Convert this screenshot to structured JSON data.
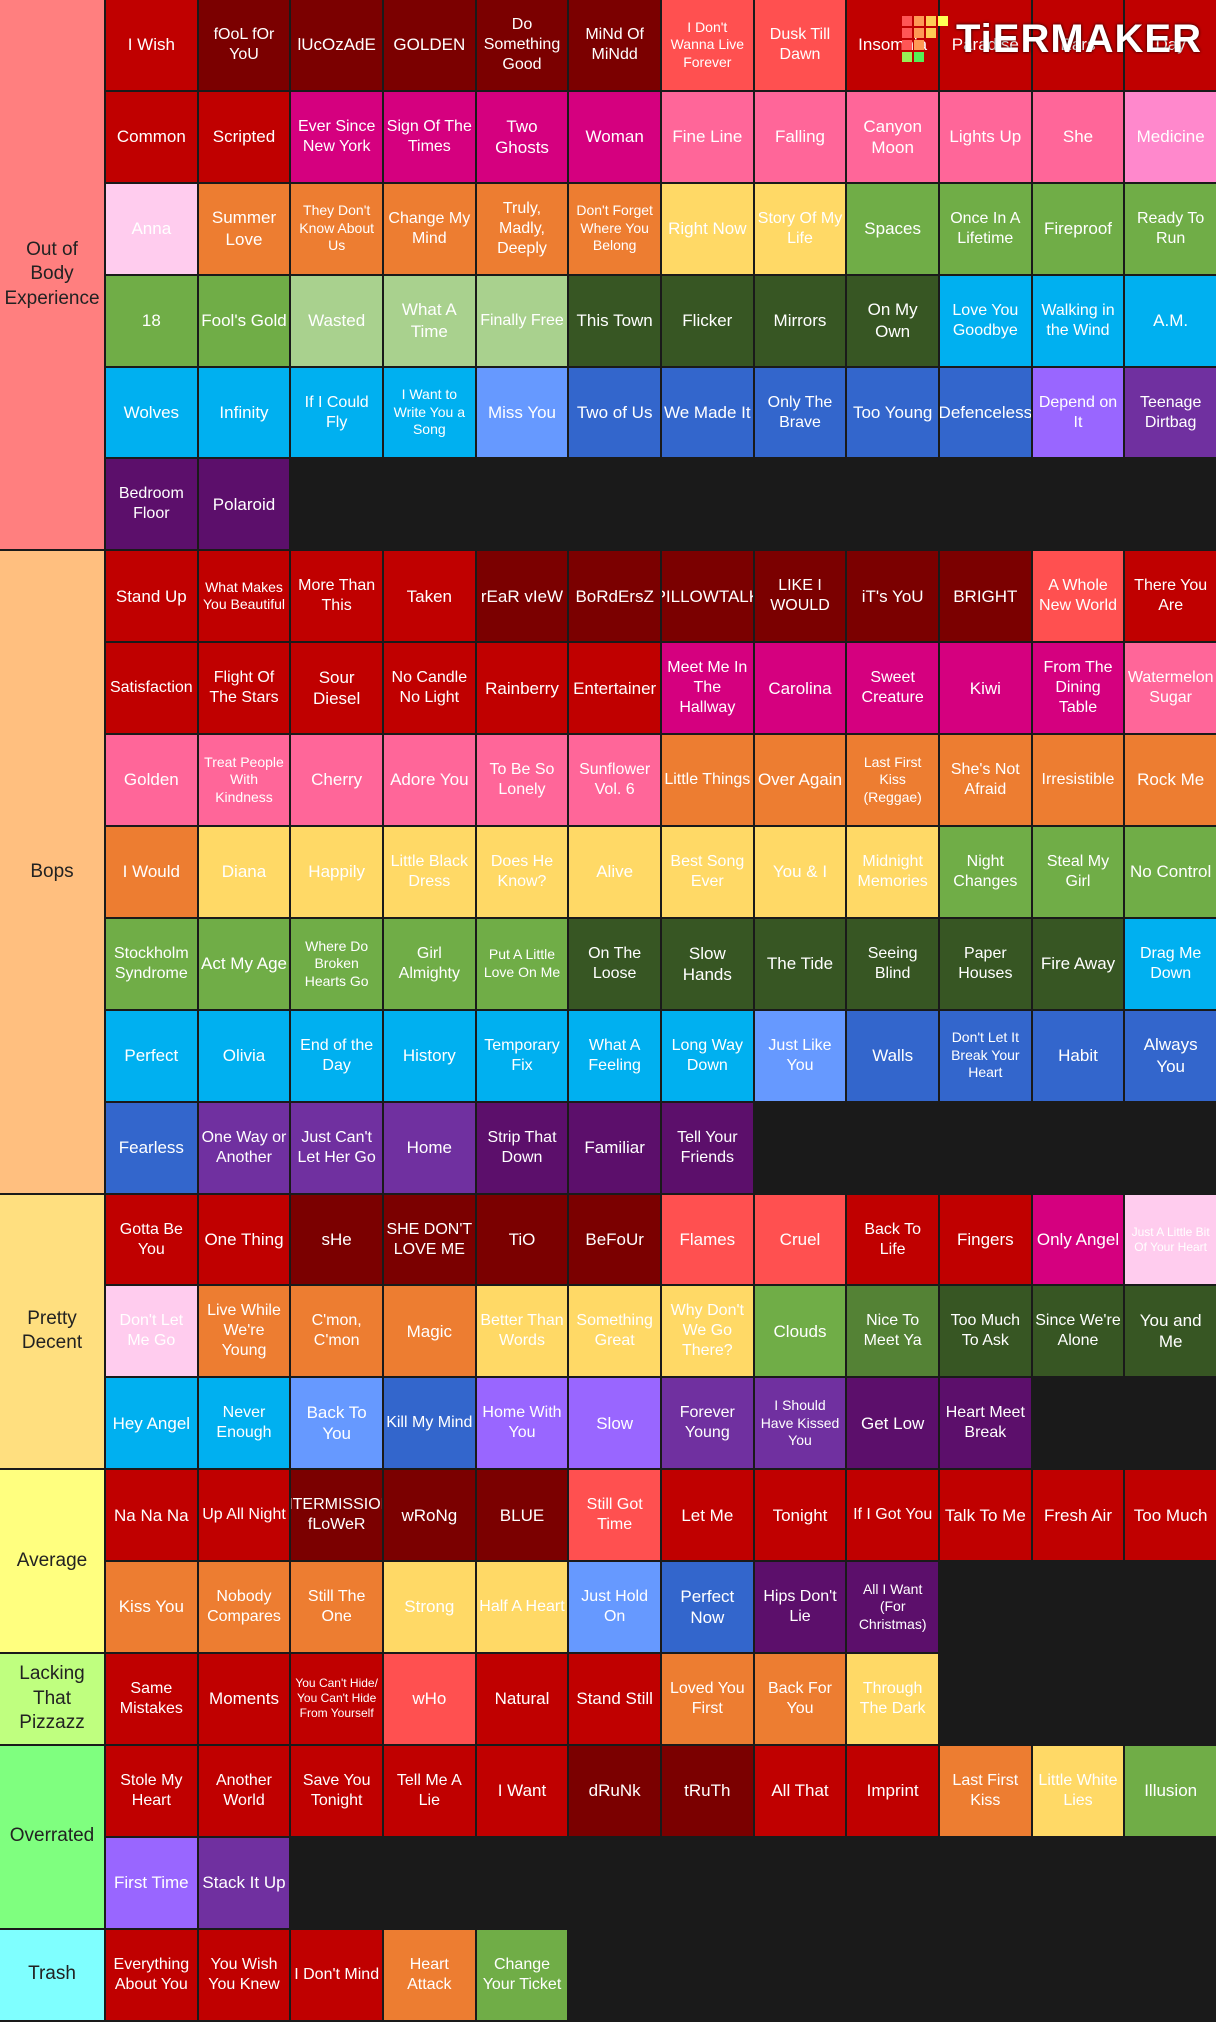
{
  "watermark": "TiERMAKER",
  "tiers": [
    {
      "label": "Out of Body Experience",
      "color": "#ff7f7f",
      "items": [
        "I Wish",
        "fOoL fOr YoU",
        "lUcOzAdE",
        "GOLDEN",
        "Do Something Good",
        "MiNd Of MiNdd",
        "I Don't Wanna Live Forever",
        "Dusk Till Dawn",
        "Insomnia",
        "Paradise",
        "Ears",
        "Day",
        "Common",
        "Scripted",
        "Ever Since New York",
        "Sign Of The Times",
        "Two Ghosts",
        "Woman",
        "Fine Line",
        "Falling",
        "Canyon Moon",
        "Lights Up",
        "She",
        "Medicine",
        "Anna",
        "Summer Love",
        "They Don't Know About Us",
        "Change My Mind",
        "Truly, Madly, Deeply",
        "Don't Forget Where You Belong",
        "Right Now",
        "Story Of My Life",
        "Spaces",
        "Once In A Lifetime",
        "Fireproof",
        "Ready To Run",
        "18",
        "Fool's Gold",
        "Wasted",
        "What A Time",
        "Finally Free",
        "This Town",
        "Flicker",
        "Mirrors",
        "On My Own",
        "Love You Goodbye",
        "Walking in the Wind",
        "A.M.",
        "Wolves",
        "Infinity",
        "If I Could Fly",
        "I Want to Write You a Song",
        "Miss You",
        "Two of Us",
        "We Made It",
        "Only The Brave",
        "Too Young",
        "Defenceless",
        "Depend on It",
        "Teenage Dirtbag",
        "Bedroom Floor",
        "Polaroid"
      ],
      "colors": [
        "#c00000",
        "#7b0000",
        "#7b0000",
        "#7b0000",
        "#7b0000",
        "#7b0000",
        "#ff5050",
        "#ff5050",
        "#c00000",
        "#c00000",
        "#c00000",
        "#c00000",
        "#c00000",
        "#c00000",
        "#d5007f",
        "#d5007f",
        "#d5007f",
        "#d5007f",
        "#ff6699",
        "#ff6699",
        "#ff6699",
        "#ff6699",
        "#ff6699",
        "#ff88cc",
        "#ffccee",
        "#ed7d31",
        "#ed7d31",
        "#ed7d31",
        "#ed7d31",
        "#ed7d31",
        "#ffd966",
        "#ffd966",
        "#70ad47",
        "#70ad47",
        "#70ad47",
        "#70ad47",
        "#70ad47",
        "#70ad47",
        "#a9d18e",
        "#a9d18e",
        "#a9d18e",
        "#375623",
        "#375623",
        "#375623",
        "#375623",
        "#00b0f0",
        "#00b0f0",
        "#00b0f0",
        "#00b0f0",
        "#00b0f0",
        "#00b0f0",
        "#00b0f0",
        "#6699ff",
        "#3366cc",
        "#3366cc",
        "#3366cc",
        "#3366cc",
        "#3366cc",
        "#9966ff",
        "#7030a0",
        "#5c0f6b",
        "#5c0f6b"
      ]
    },
    {
      "label": "Bops",
      "color": "#ffbf7f",
      "items": [
        "Stand Up",
        "What Makes You Beautiful",
        "More Than This",
        "Taken",
        "rEaR vIeW",
        "BoRdErsZ",
        "PILLOWTALK",
        "LIKE I WOULD",
        "iT's YoU",
        "BRIGHT",
        "A Whole New World",
        "There You Are",
        "Satisfaction",
        "Flight Of The Stars",
        "Sour Diesel",
        "No Candle No Light",
        "Rainberry",
        "Entertainer",
        "Meet Me In The Hallway",
        "Carolina",
        "Sweet Creature",
        "Kiwi",
        "From The Dining Table",
        "Watermelon Sugar",
        "Golden",
        "Treat People With Kindness",
        "Cherry",
        "Adore You",
        "To Be So Lonely",
        "Sunflower Vol. 6",
        "Little Things",
        "Over Again",
        "Last First Kiss (Reggae)",
        "She's Not Afraid",
        "Irresistible",
        "Rock Me",
        "I Would",
        "Diana",
        "Happily",
        "Little Black Dress",
        "Does He Know?",
        "Alive",
        "Best Song Ever",
        "You & I",
        "Midnight Memories",
        "Night Changes",
        "Steal My Girl",
        "No Control",
        "Stockholm Syndrome",
        "Act My Age",
        "Where Do Broken Hearts Go",
        "Girl Almighty",
        "Put A Little Love On Me",
        "On The Loose",
        "Slow Hands",
        "The Tide",
        "Seeing Blind",
        "Paper Houses",
        "Fire Away",
        "Drag Me Down",
        "Perfect",
        "Olivia",
        "End of the Day",
        "History",
        "Temporary Fix",
        "What A Feeling",
        "Long Way Down",
        "Just Like You",
        "Walls",
        "Don't Let It Break Your Heart",
        "Habit",
        "Always You",
        "Fearless",
        "One Way or Another",
        "Just Can't Let Her Go",
        "Home",
        "Strip That Down",
        "Familiar",
        "Tell Your Friends"
      ],
      "colors": [
        "#c00000",
        "#c00000",
        "#c00000",
        "#c00000",
        "#7b0000",
        "#7b0000",
        "#7b0000",
        "#7b0000",
        "#7b0000",
        "#7b0000",
        "#ff5050",
        "#c00000",
        "#c00000",
        "#c00000",
        "#c00000",
        "#c00000",
        "#c00000",
        "#c00000",
        "#d5007f",
        "#d5007f",
        "#d5007f",
        "#d5007f",
        "#d5007f",
        "#ff6699",
        "#ff6699",
        "#ff6699",
        "#ff6699",
        "#ff6699",
        "#ff6699",
        "#ff6699",
        "#ed7d31",
        "#ed7d31",
        "#ed7d31",
        "#ed7d31",
        "#ed7d31",
        "#ed7d31",
        "#ed7d31",
        "#ffd966",
        "#ffd966",
        "#ffd966",
        "#ffd966",
        "#ffd966",
        "#ffd966",
        "#ffd966",
        "#ffd966",
        "#70ad47",
        "#70ad47",
        "#70ad47",
        "#70ad47",
        "#70ad47",
        "#70ad47",
        "#70ad47",
        "#70ad47",
        "#375623",
        "#375623",
        "#375623",
        "#375623",
        "#375623",
        "#375623",
        "#00b0f0",
        "#00b0f0",
        "#00b0f0",
        "#00b0f0",
        "#00b0f0",
        "#00b0f0",
        "#00b0f0",
        "#00b0f0",
        "#6699ff",
        "#3366cc",
        "#3366cc",
        "#3366cc",
        "#3366cc",
        "#3366cc",
        "#7030a0",
        "#7030a0",
        "#7030a0",
        "#5c0f6b",
        "#5c0f6b",
        "#5c0f6b"
      ]
    },
    {
      "label": "Pretty Decent",
      "color": "#ffdf7f",
      "items": [
        "Gotta Be You",
        "One Thing",
        "sHe",
        "SHE DON'T LOVE ME",
        "TiO",
        "BeFoUr",
        "Flames",
        "Cruel",
        "Back To Life",
        "Fingers",
        "Only Angel",
        "Just A Little Bit Of Your Heart",
        "Don't Let Me Go",
        "Live While We're Young",
        "C'mon, C'mon",
        "Magic",
        "Better Than Words",
        "Something Great",
        "Why Don't We Go There?",
        "Clouds",
        "Nice To Meet Ya",
        "Too Much To Ask",
        "Since We're Alone",
        "You and Me",
        "Hey Angel",
        "Never Enough",
        "Back To You",
        "Kill My Mind",
        "Home With You",
        "Slow",
        "Forever Young",
        "I Should Have Kissed You",
        "Get Low",
        "Heart Meet Break"
      ],
      "colors": [
        "#c00000",
        "#c00000",
        "#7b0000",
        "#7b0000",
        "#7b0000",
        "#7b0000",
        "#ff5050",
        "#ff5050",
        "#c00000",
        "#c00000",
        "#d5007f",
        "#ffccee",
        "#ffccee",
        "#ed7d31",
        "#ed7d31",
        "#ed7d31",
        "#ffd966",
        "#ffd966",
        "#ffd966",
        "#70ad47",
        "#548235",
        "#375623",
        "#375623",
        "#375623",
        "#00b0f0",
        "#00b0f0",
        "#6699ff",
        "#3366cc",
        "#9966ff",
        "#9966ff",
        "#7030a0",
        "#7030a0",
        "#5c0f6b",
        "#5c0f6b"
      ]
    },
    {
      "label": "Average",
      "color": "#ffff7f",
      "items": [
        "Na Na Na",
        "Up All Night",
        "INTERMISSION: fLoWeR",
        "wRoNg",
        "BLUE",
        "Still Got Time",
        "Let Me",
        "Tonight",
        "If I Got You",
        "Talk To Me",
        "Fresh Air",
        "Too Much",
        "Kiss You",
        "Nobody Compares",
        "Still The One",
        "Strong",
        "Half A Heart",
        "Just Hold On",
        "Perfect Now",
        "Hips Don't Lie",
        "All I Want (For Christmas)"
      ],
      "colors": [
        "#c00000",
        "#c00000",
        "#7b0000",
        "#7b0000",
        "#7b0000",
        "#ff5050",
        "#c00000",
        "#c00000",
        "#c00000",
        "#c00000",
        "#c00000",
        "#c00000",
        "#ed7d31",
        "#ed7d31",
        "#ed7d31",
        "#ffd966",
        "#ffd966",
        "#6699ff",
        "#3366cc",
        "#5c0f6b",
        "#5c0f6b"
      ]
    },
    {
      "label": "Lacking That Pizzazz",
      "color": "#bfff7f",
      "items": [
        "Same Mistakes",
        "Moments",
        "You Can't Hide/ You Can't Hide From Yourself",
        "wHo",
        "Natural",
        "Stand Still",
        "Loved You First",
        "Back For You",
        "Through The Dark"
      ],
      "colors": [
        "#c00000",
        "#c00000",
        "#c00000",
        "#ff5050",
        "#c00000",
        "#c00000",
        "#ed7d31",
        "#ed7d31",
        "#ffd966"
      ]
    },
    {
      "label": "Overrated",
      "color": "#7fff7f",
      "items": [
        "Stole My Heart",
        "Another World",
        "Save You Tonight",
        "Tell Me A Lie",
        "I Want",
        "dRuNk",
        "tRuTh",
        "All That",
        "Imprint",
        "Last First Kiss",
        "Little White Lies",
        "Illusion",
        "First Time",
        "Stack It Up"
      ],
      "colors": [
        "#c00000",
        "#c00000",
        "#c00000",
        "#c00000",
        "#c00000",
        "#7b0000",
        "#7b0000",
        "#c00000",
        "#c00000",
        "#ed7d31",
        "#ffd966",
        "#70ad47",
        "#9966ff",
        "#7030a0"
      ]
    },
    {
      "label": "Trash",
      "color": "#7fffff",
      "items": [
        "Everything About You",
        "You Wish You Knew",
        "I Don't Mind",
        "Heart Attack",
        "Change Your Ticket"
      ],
      "colors": [
        "#c00000",
        "#c00000",
        "#c00000",
        "#ed7d31",
        "#70ad47"
      ]
    }
  ]
}
